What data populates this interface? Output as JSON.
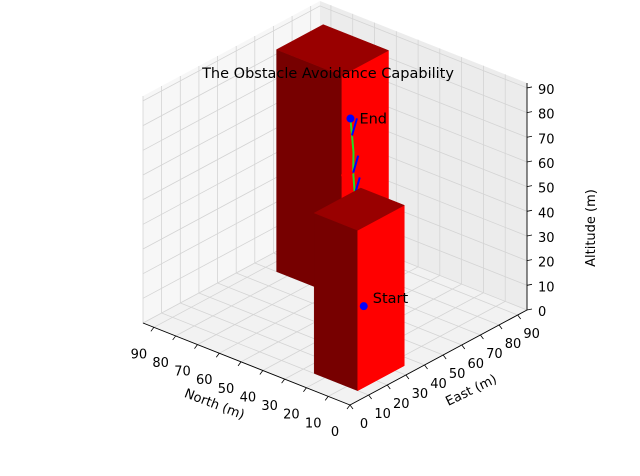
{
  "chart_data": {
    "type": "3d-line",
    "title": "The Obstacle Avoidance Capability",
    "axes": {
      "north": {
        "label": "North (m)",
        "ticks": [
          0,
          10,
          20,
          30,
          40,
          50,
          60,
          70,
          80,
          90
        ],
        "range": [
          0,
          95
        ]
      },
      "east": {
        "label": "East (m)",
        "ticks": [
          0,
          10,
          20,
          30,
          40,
          50,
          60,
          70,
          80,
          90
        ],
        "range": [
          0,
          95
        ]
      },
      "altitude": {
        "label": "Altitude (m)",
        "ticks": [
          0,
          10,
          20,
          30,
          40,
          50,
          60,
          70,
          80,
          90
        ],
        "range": [
          0,
          92
        ]
      }
    },
    "grid": true,
    "obstacles": [
      {
        "north": [
          55,
          85
        ],
        "east": [
          60,
          85
        ],
        "height": 90,
        "color": "#ff0000"
      },
      {
        "north": [
          5,
          25
        ],
        "east": [
          10,
          35
        ],
        "height": 65,
        "color": "#ff0000"
      }
    ],
    "path": {
      "color": "#22dd22",
      "points": [
        {
          "north": 45,
          "east": 60,
          "altitude": 0
        },
        {
          "north": 45,
          "east": 58,
          "altitude": 8
        },
        {
          "north": 44,
          "east": 56,
          "altitude": 17
        },
        {
          "north": 43,
          "east": 53,
          "altitude": 26
        },
        {
          "north": 41,
          "east": 50,
          "altitude": 34
        },
        {
          "north": 40,
          "east": 49,
          "altitude": 44
        },
        {
          "north": 38,
          "east": 47,
          "altitude": 53
        },
        {
          "north": 37,
          "east": 45,
          "altitude": 63
        },
        {
          "north": 36,
          "east": 44,
          "altitude": 72
        },
        {
          "north": 35,
          "east": 42,
          "altitude": 80
        },
        {
          "north": 34,
          "east": 40,
          "altitude": 88
        }
      ]
    },
    "frames_at": [
      0.1,
      0.25,
      0.4,
      0.55,
      0.7,
      0.85
    ],
    "frame_colors": {
      "x": "#ff0000",
      "z": "#0000ff"
    },
    "markers": [
      {
        "label": "Start",
        "north": 45,
        "east": 60,
        "altitude": 0,
        "color": "#0000ff"
      },
      {
        "label": "End",
        "north": 34,
        "east": 40,
        "altitude": 88,
        "color": "#0000ff"
      }
    ]
  }
}
